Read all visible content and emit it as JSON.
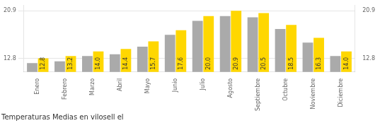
{
  "chart_data": {
    "type": "bar",
    "title": "Temperaturas Medias en vilosell el",
    "categories": [
      "Enero",
      "Febrero",
      "Marzo",
      "Abril",
      "Mayo",
      "Junio",
      "Julio",
      "Agosto",
      "Septiembre",
      "Octubre",
      "Noviembre",
      "Diciembre"
    ],
    "series": [
      {
        "color": "#AAAAAA",
        "values": [
          12.0,
          12.3,
          13.2,
          13.5,
          14.8,
          16.8,
          19.2,
          20.0,
          19.8,
          17.8,
          15.5,
          13.2
        ]
      },
      {
        "color": "#FFD700",
        "values": [
          12.8,
          13.2,
          14.0,
          14.4,
          15.7,
          17.6,
          20.0,
          20.9,
          20.5,
          18.5,
          16.3,
          14.0
        ],
        "value_labels": [
          "12.8",
          "13.2",
          "14.0",
          "14.4",
          "15.7",
          "17.6",
          "20.0",
          "20.9",
          "20.5",
          "18.5",
          "16.3",
          "14.0"
        ],
        "data_labels": true
      }
    ],
    "ylim": [
      10.5,
      21.8
    ],
    "yticks": [
      12.8,
      20.9
    ],
    "y2lim": [
      10.5,
      21.8
    ],
    "y2ticks": [
      12.8,
      20.9
    ],
    "grid": true
  }
}
